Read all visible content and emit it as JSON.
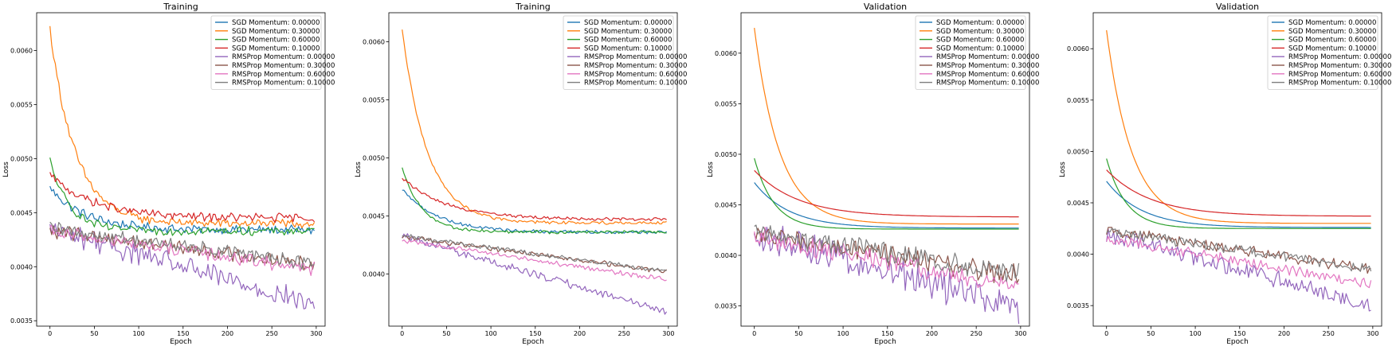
{
  "colors": {
    "SGD Momentum: 0.00000": "#1f77b4",
    "SGD Momentum: 0.30000": "#ff7f0e",
    "SGD Momentum: 0.60000": "#2ca02c",
    "SGD Momentum: 0.10000": "#d62728",
    "RMSProp Momentum: 0.00000": "#9467bd",
    "RMSProp Momentum: 0.30000": "#8c564b",
    "RMSProp Momentum: 0.60000": "#e377c2",
    "RMSProp Momentum: 0.10000": "#7f7f7f"
  },
  "chart_data": [
    {
      "type": "line",
      "title": "Training",
      "xlabel": "Epoch",
      "ylabel": "Loss",
      "xlim": [
        -15,
        310
      ],
      "ylim": [
        0.00345,
        0.00635
      ],
      "xticks": [
        0,
        50,
        100,
        150,
        200,
        250,
        300
      ],
      "yticks": [
        0.0035,
        0.004,
        0.0045,
        0.005,
        0.0055,
        0.006
      ],
      "ytick_labels": [
        "0.0035",
        "0.0040",
        "0.0045",
        "0.0050",
        "0.0055",
        "0.0060"
      ],
      "legend_position": "upper right",
      "noise": "high",
      "series": [
        {
          "name": "SGD Momentum: 0.00000",
          "start": 0.00473,
          "end": 0.00434
        },
        {
          "name": "SGD Momentum: 0.30000",
          "start": 0.0062,
          "end": 0.0044
        },
        {
          "name": "SGD Momentum: 0.60000",
          "start": 0.00498,
          "end": 0.00433
        },
        {
          "name": "SGD Momentum: 0.10000",
          "start": 0.00485,
          "end": 0.00445
        },
        {
          "name": "RMSProp Momentum: 0.00000",
          "start": 0.00435,
          "end": 0.00365
        },
        {
          "name": "RMSProp Momentum: 0.30000",
          "start": 0.00433,
          "end": 0.00402
        },
        {
          "name": "RMSProp Momentum: 0.60000",
          "start": 0.00432,
          "end": 0.00398
        },
        {
          "name": "RMSProp Momentum: 0.10000",
          "start": 0.00435,
          "end": 0.00403
        }
      ]
    },
    {
      "type": "line",
      "title": "Training",
      "xlabel": "Epoch",
      "ylabel": "Loss",
      "xlim": [
        -15,
        310
      ],
      "ylim": [
        0.00355,
        0.00625
      ],
      "xticks": [
        0,
        50,
        100,
        150,
        200,
        250,
        300
      ],
      "yticks": [
        0.004,
        0.0045,
        0.005,
        0.0055,
        0.006
      ],
      "ytick_labels": [
        "0.0040",
        "0.0045",
        "0.0050",
        "0.0055",
        "0.0060"
      ],
      "legend_position": "upper right",
      "noise": "low",
      "series": [
        {
          "name": "SGD Momentum: 0.00000",
          "start": 0.00473,
          "end": 0.00436
        },
        {
          "name": "SGD Momentum: 0.30000",
          "start": 0.00611,
          "end": 0.00444
        },
        {
          "name": "SGD Momentum: 0.60000",
          "start": 0.00492,
          "end": 0.00436
        },
        {
          "name": "SGD Momentum: 0.10000",
          "start": 0.00483,
          "end": 0.00447
        },
        {
          "name": "RMSProp Momentum: 0.00000",
          "start": 0.00433,
          "end": 0.00367
        },
        {
          "name": "RMSProp Momentum: 0.30000",
          "start": 0.00432,
          "end": 0.00402
        },
        {
          "name": "RMSProp Momentum: 0.60000",
          "start": 0.00429,
          "end": 0.00395
        },
        {
          "name": "RMSProp Momentum: 0.10000",
          "start": 0.00433,
          "end": 0.00402
        }
      ]
    },
    {
      "type": "line",
      "title": "Validation",
      "xlabel": "Epoch",
      "ylabel": "Loss",
      "xlim": [
        -15,
        310
      ],
      "ylim": [
        0.0033,
        0.0064
      ],
      "xticks": [
        0,
        50,
        100,
        150,
        200,
        250,
        300
      ],
      "yticks": [
        0.0035,
        0.004,
        0.0045,
        0.005,
        0.0055,
        0.006
      ],
      "ytick_labels": [
        "0.0035",
        "0.0040",
        "0.0045",
        "0.0050",
        "0.0055",
        "0.0060"
      ],
      "legend_position": "upper right",
      "noise": "smooth-sgd",
      "series": [
        {
          "name": "SGD Momentum: 0.00000",
          "start": 0.00472,
          "end": 0.00427
        },
        {
          "name": "SGD Momentum: 0.30000",
          "start": 0.00625,
          "end": 0.00431
        },
        {
          "name": "SGD Momentum: 0.60000",
          "start": 0.00496,
          "end": 0.00426
        },
        {
          "name": "SGD Momentum: 0.10000",
          "start": 0.00484,
          "end": 0.00438
        },
        {
          "name": "RMSProp Momentum: 0.00000",
          "start": 0.0042,
          "end": 0.0035
        },
        {
          "name": "RMSProp Momentum: 0.30000",
          "start": 0.00421,
          "end": 0.0038
        },
        {
          "name": "RMSProp Momentum: 0.60000",
          "start": 0.0042,
          "end": 0.00368
        },
        {
          "name": "RMSProp Momentum: 0.10000",
          "start": 0.00422,
          "end": 0.00383
        }
      ]
    },
    {
      "type": "line",
      "title": "Validation",
      "xlabel": "Epoch",
      "ylabel": "Loss",
      "xlim": [
        -15,
        310
      ],
      "ylim": [
        0.0033,
        0.00635
      ],
      "xticks": [
        0,
        50,
        100,
        150,
        200,
        250,
        300
      ],
      "yticks": [
        0.0035,
        0.004,
        0.0045,
        0.005,
        0.0055,
        0.006
      ],
      "ytick_labels": [
        "0.0035",
        "0.0040",
        "0.0045",
        "0.0050",
        "0.0055",
        "0.0060"
      ],
      "legend_position": "upper right",
      "noise": "smooth-sgd-low",
      "series": [
        {
          "name": "SGD Momentum: 0.00000",
          "start": 0.00471,
          "end": 0.00426
        },
        {
          "name": "SGD Momentum: 0.30000",
          "start": 0.00618,
          "end": 0.0043
        },
        {
          "name": "SGD Momentum: 0.60000",
          "start": 0.00493,
          "end": 0.00425
        },
        {
          "name": "SGD Momentum: 0.10000",
          "start": 0.00482,
          "end": 0.00437
        },
        {
          "name": "RMSProp Momentum: 0.00000",
          "start": 0.0042,
          "end": 0.0035
        },
        {
          "name": "RMSProp Momentum: 0.30000",
          "start": 0.00424,
          "end": 0.00385
        },
        {
          "name": "RMSProp Momentum: 0.60000",
          "start": 0.00416,
          "end": 0.0037
        },
        {
          "name": "RMSProp Momentum: 0.10000",
          "start": 0.00423,
          "end": 0.00385
        }
      ]
    }
  ]
}
